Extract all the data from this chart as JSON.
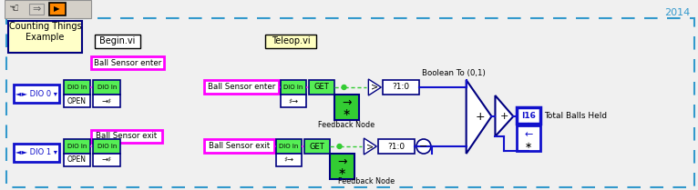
{
  "bg": "#f0f0f0",
  "year": "2014",
  "title": "Counting Things\nExample",
  "begin": "Begin.vi",
  "teleop": "Teleop.vi",
  "label_enter": "Ball Sensor enter",
  "label_exit": "Ball Sensor exit",
  "bool_label": "Boolean To (0,1)",
  "fb_label": "Feedback Node",
  "total_label": "Total Balls Held",
  "dio0": "◄► DIO 0 ▾",
  "dio1": "◄► DIO 1 ▾",
  "get": "GET",
  "open": "OPEN",
  "i16": "I16",
  "green": "#00cc00",
  "lime": "#44ff44",
  "magenta": "#ff00ff",
  "blue": "#1111cc",
  "navy": "#000080",
  "dkcyan": "#0099bb",
  "yellow": "#ffffc0",
  "white": "#ffffff",
  "black": "#000000",
  "orange": "#ff8800",
  "gray": "#909090",
  "dgray": "#606060",
  "toolbar": "#d4d0c8",
  "border_c": "#3399cc"
}
